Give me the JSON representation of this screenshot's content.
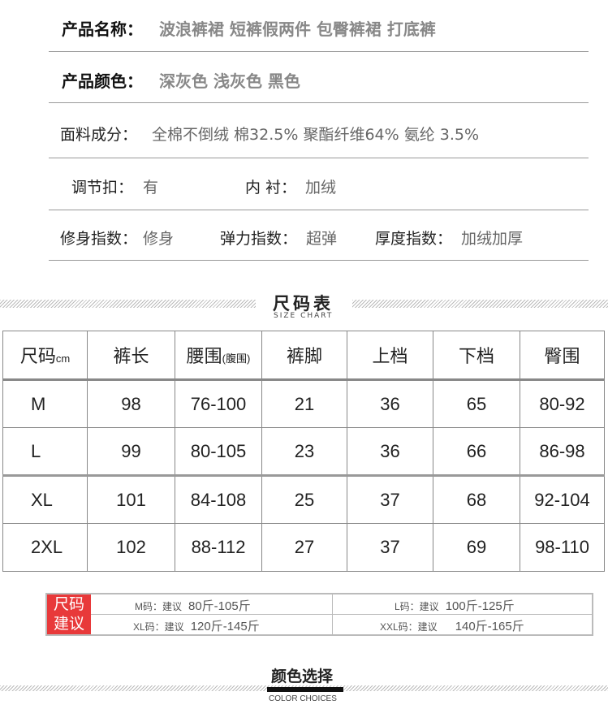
{
  "info": {
    "name_label": "产品名称：",
    "name_value": "波浪裤裙  短裤假两件  包臀裤裙  打底裤",
    "color_label": "产品颜色：",
    "color_value": "深灰色 浅灰色 黑色",
    "fabric_label": "面料成分：",
    "fabric_value": "全棉不倒绒   棉32.5% 聚酯纤维64% 氨纶 3.5%",
    "buckle_label": "调节扣：",
    "buckle_value": "有",
    "lining_label": "内  衬：",
    "lining_value": "加绒",
    "fit_label": "修身指数：",
    "fit_value": "修身",
    "stretch_label": "弹力指数：",
    "stretch_value": "超弹",
    "thickness_label": "厚度指数：",
    "thickness_value": "加绒加厚"
  },
  "size_chart": {
    "title": "尺码表",
    "subtitle": "SIZE CHART",
    "headers": [
      "尺码",
      "裤长",
      "腰围",
      "裤脚",
      "上档",
      "下档",
      "臀围"
    ],
    "unit": "cm",
    "waist_note": "(腹围)",
    "rows": [
      [
        "M",
        "98",
        "76-100",
        "21",
        "36",
        "65",
        "80-92"
      ],
      [
        "L",
        "99",
        "80-105",
        "23",
        "36",
        "66",
        "86-98"
      ],
      [
        "XL",
        "101",
        "84-108",
        "25",
        "37",
        "68",
        "92-104"
      ],
      [
        "2XL",
        "102",
        "88-112",
        "27",
        "37",
        "69",
        "98-110"
      ]
    ]
  },
  "suggestion": {
    "tag_line1": "尺码",
    "tag_line2": "建议",
    "items": [
      {
        "size": "M码：建议",
        "range": "80斤-105斤"
      },
      {
        "size": "L码：建议",
        "range": "100斤-125斤"
      },
      {
        "size": "XL码：建议",
        "range": "120斤-145斤"
      },
      {
        "size": "XXL码：建议",
        "range": "140斤-165斤"
      }
    ]
  },
  "color_section": {
    "title": "颜色选择",
    "subtitle": "COLOR CHOICES"
  },
  "colors": {
    "accent_red": "#e8393a"
  }
}
